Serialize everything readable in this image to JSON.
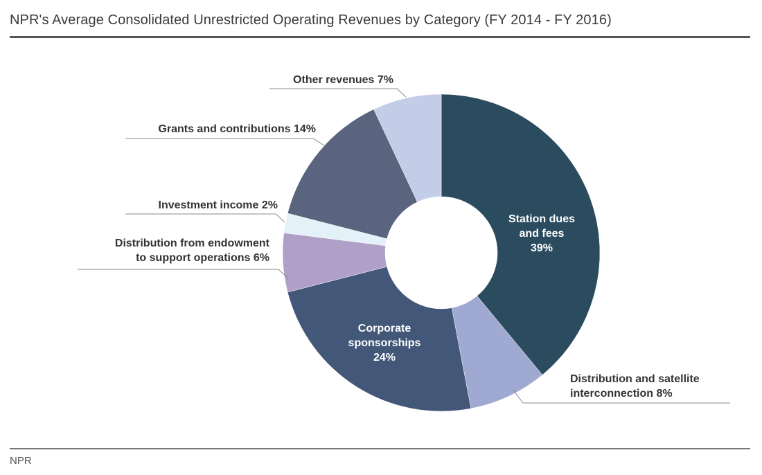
{
  "header": {
    "title": "NPR's Average Consolidated Unrestricted Operating Revenues by Category (FY 2014 - FY 2016)"
  },
  "footer": {
    "source": "NPR"
  },
  "chart_data": {
    "type": "pie",
    "donut": true,
    "title": "NPR's Average Consolidated Unrestricted Operating Revenues by Category (FY 2014 - FY 2016)",
    "unit": "%",
    "slices": [
      {
        "name": "Station dues and fees",
        "value": 39,
        "color": "#2b4c5e",
        "label_lines": [
          "Station dues",
          "and fees",
          "39%"
        ]
      },
      {
        "name": "Distribution and satellite interconnection",
        "value": 8,
        "color": "#9fa9d1",
        "label_lines": [
          "Distribution and satellite",
          "interconnection 8%"
        ]
      },
      {
        "name": "Corporate sponsorships",
        "value": 24,
        "color": "#435779",
        "label_lines": [
          "Corporate",
          "sponsorships",
          "24%"
        ]
      },
      {
        "name": "Distribution from endowment to support operations",
        "value": 6,
        "color": "#b09fc7",
        "label_lines": [
          "Distribution from endowment",
          "to support operations 6%"
        ]
      },
      {
        "name": "Investment income",
        "value": 2,
        "color": "#e5f1f9",
        "label_lines": [
          "Investment income 2%"
        ]
      },
      {
        "name": "Grants and contributions",
        "value": 14,
        "color": "#5b647e",
        "label_lines": [
          "Grants and contributions 14%"
        ]
      },
      {
        "name": "Other revenues",
        "value": 7,
        "color": "#c4cde7",
        "label_lines": [
          "Other revenues 7%"
        ]
      }
    ]
  }
}
